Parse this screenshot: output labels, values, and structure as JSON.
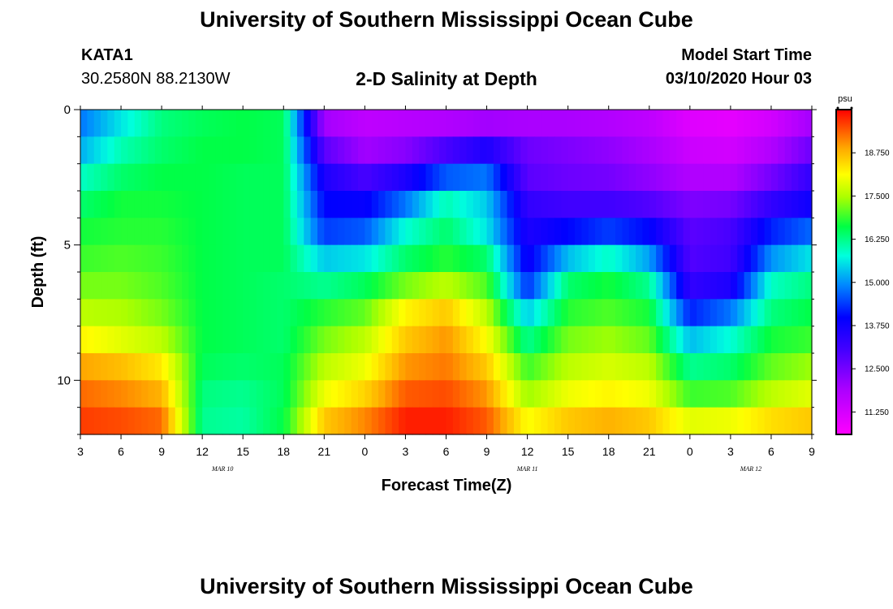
{
  "header": {
    "title": "University of Southern Mississippi Ocean Cube",
    "station_id": "KATA1",
    "station_coords": "30.2580N 88.2130W",
    "model_start_label": "Model Start Time",
    "model_start_value": "03/10/2020 Hour 03"
  },
  "footer": {
    "title": "University of Southern Mississippi Ocean Cube"
  },
  "chart_data": {
    "type": "heatmap",
    "title": "2-D Salinity at Depth",
    "xlabel": "Forecast Time(Z)",
    "ylabel": "Depth (ft)",
    "x_hours_from_start": [
      0,
      3,
      6,
      9,
      12,
      15,
      18,
      21,
      24,
      27,
      30,
      33,
      36,
      39,
      42,
      45,
      48,
      51,
      54
    ],
    "x_tick_labels": [
      "3",
      "6",
      "9",
      "12",
      "15",
      "18",
      "21",
      "0",
      "3",
      "6",
      "9",
      "12",
      "15",
      "18",
      "21",
      "0",
      "3",
      "6",
      "9"
    ],
    "date_labels": [
      {
        "text": "MAR 10",
        "hour": 10.5
      },
      {
        "text": "MAR 11",
        "hour": 33
      },
      {
        "text": "MAR 12",
        "hour": 49.5
      }
    ],
    "xlim": [
      0,
      54
    ],
    "ylim": [
      0,
      12
    ],
    "y_ticks": [
      0,
      5,
      10
    ],
    "depth_levels_ft": [
      0.5,
      1.5,
      2.5,
      3.5,
      4.5,
      5.5,
      6.5,
      7.5,
      8.5,
      9.5,
      10.5,
      11.5
    ],
    "colorbar": {
      "unit": "psu",
      "min": 10.6,
      "max": 20.0,
      "tick_values": [
        11.25,
        12.5,
        13.75,
        15.0,
        16.25,
        17.5,
        18.75
      ],
      "tick_labels": [
        "11.250",
        "12.500",
        "13.750",
        "15.000",
        "16.250",
        "17.500",
        "18.750"
      ]
    },
    "salinity_psu": [
      [
        14.8,
        15.6,
        16.3,
        16.5,
        16.6,
        16.5,
        12.0,
        11.6,
        11.7,
        11.8,
        12.0,
        11.9,
        11.9,
        11.8,
        11.6,
        11.1,
        11.0,
        11.3,
        12.0
      ],
      [
        15.2,
        16.0,
        16.4,
        16.6,
        16.6,
        16.5,
        12.8,
        12.0,
        12.3,
        13.0,
        13.6,
        12.6,
        12.4,
        12.2,
        11.9,
        11.4,
        11.3,
        11.8,
        12.6
      ],
      [
        15.9,
        16.4,
        16.6,
        16.6,
        16.5,
        16.5,
        13.6,
        13.0,
        13.6,
        14.6,
        14.8,
        12.8,
        12.6,
        12.5,
        12.2,
        11.8,
        11.8,
        12.5,
        13.3
      ],
      [
        16.4,
        16.7,
        16.7,
        16.6,
        16.5,
        16.5,
        14.0,
        13.9,
        14.8,
        16.0,
        15.4,
        13.3,
        13.1,
        13.1,
        12.9,
        12.4,
        12.5,
        13.3,
        13.8
      ],
      [
        16.7,
        16.8,
        16.8,
        16.6,
        16.5,
        16.5,
        14.4,
        14.6,
        15.8,
        16.4,
        15.6,
        13.6,
        14.0,
        14.4,
        14.0,
        12.8,
        13.0,
        14.2,
        14.7
      ],
      [
        16.9,
        17.0,
        16.9,
        16.6,
        16.5,
        16.5,
        15.4,
        15.6,
        16.4,
        16.8,
        16.4,
        13.8,
        15.3,
        15.9,
        15.1,
        12.9,
        13.1,
        15.0,
        15.6
      ],
      [
        17.2,
        17.2,
        17.0,
        16.6,
        16.5,
        16.4,
        16.2,
        16.5,
        17.2,
        17.6,
        17.0,
        14.3,
        16.4,
        16.7,
        16.2,
        13.3,
        13.6,
        15.9,
        16.3
      ],
      [
        17.6,
        17.5,
        17.2,
        16.6,
        16.5,
        16.4,
        16.8,
        17.1,
        18.2,
        18.6,
        17.6,
        15.4,
        16.8,
        17.0,
        16.7,
        14.2,
        14.8,
        16.3,
        16.6
      ],
      [
        18.2,
        17.9,
        17.6,
        16.6,
        16.5,
        16.4,
        17.2,
        17.6,
        18.6,
        19.0,
        18.1,
        16.2,
        17.2,
        17.4,
        17.1,
        15.3,
        15.8,
        16.7,
        16.9
      ],
      [
        18.9,
        18.7,
        18.3,
        16.5,
        16.4,
        16.5,
        17.6,
        18.0,
        19.0,
        19.2,
        18.6,
        16.9,
        17.6,
        17.8,
        17.6,
        16.2,
        16.4,
        17.1,
        17.4
      ],
      [
        19.3,
        19.1,
        18.8,
        16.3,
        16.2,
        16.5,
        18.0,
        18.5,
        19.4,
        19.5,
        19.0,
        17.4,
        18.0,
        18.2,
        18.0,
        16.9,
        17.0,
        17.6,
        17.9
      ],
      [
        19.6,
        19.5,
        19.3,
        16.2,
        16.1,
        16.6,
        18.6,
        19.1,
        19.8,
        19.8,
        19.4,
        18.1,
        18.6,
        18.8,
        18.6,
        17.9,
        18.0,
        18.4,
        18.6
      ]
    ]
  }
}
